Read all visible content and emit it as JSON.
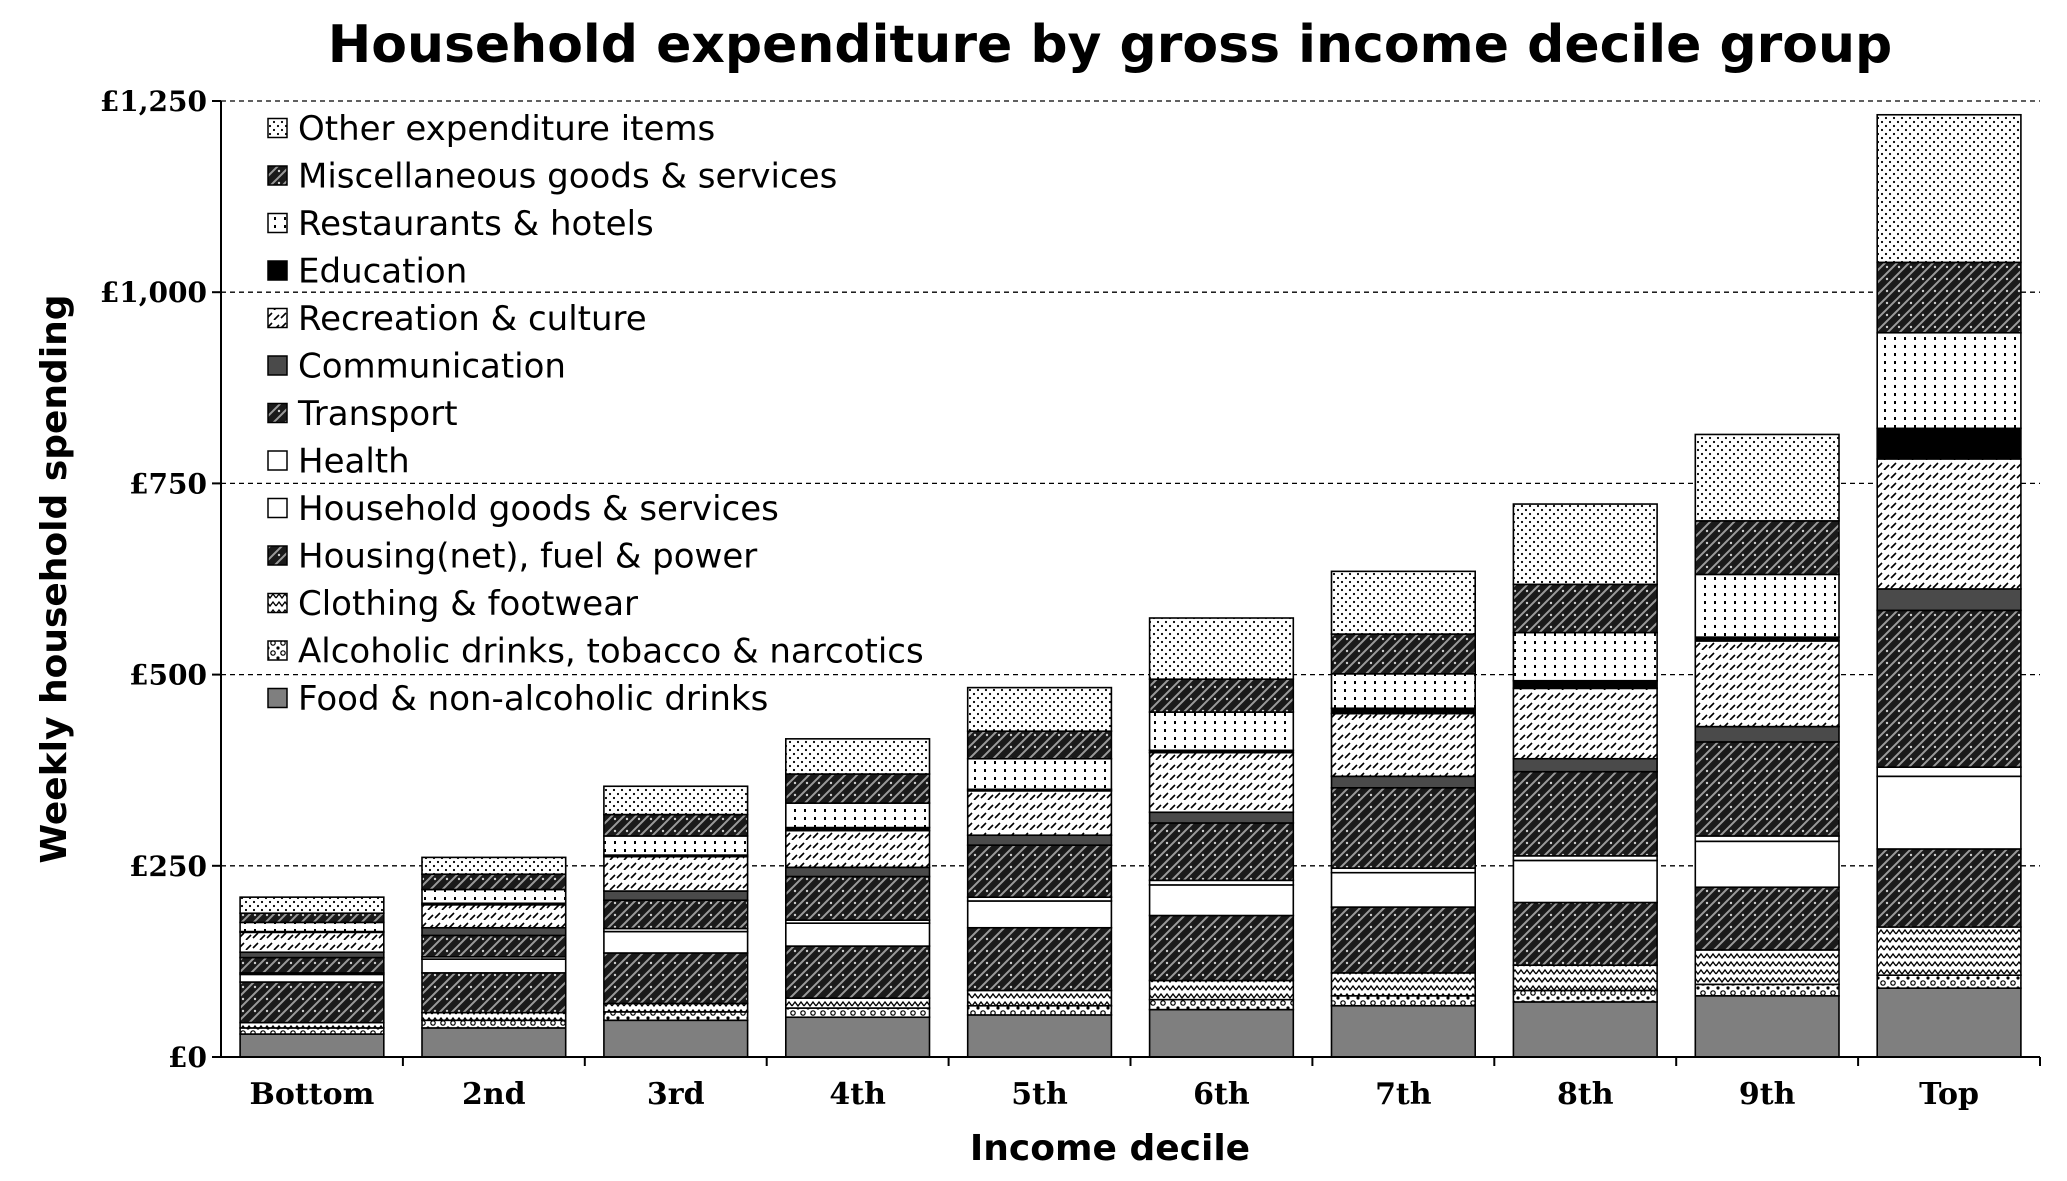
{
  "chart_data": {
    "type": "bar",
    "stacked": true,
    "title": "Household expenditure by gross income decile group",
    "xlabel": "Income decile",
    "ylabel": "Weekly household spending",
    "ylim": [
      0,
      1250
    ],
    "yticks": [
      0,
      250,
      500,
      750,
      1000,
      1250
    ],
    "ytick_labels": [
      "£0",
      "£250",
      "£500",
      "£750",
      "£1,000",
      "£1,250"
    ],
    "grid": "horizontal dashed",
    "legend_position": "top-left",
    "categories": [
      "Bottom",
      "2nd",
      "3rd",
      "4th",
      "5th",
      "6th",
      "7th",
      "8th",
      "9th",
      "Top"
    ],
    "series": [
      {
        "name": "Food & non-alcoholic drinks",
        "pattern": "solid-gray",
        "values": [
          30,
          38,
          48,
          52,
          55,
          62,
          67,
          72,
          80,
          90
        ]
      },
      {
        "name": "Alcoholic drinks, tobacco & narcotics",
        "pattern": "bubbles",
        "values": [
          8,
          10,
          11,
          12,
          12,
          13,
          13,
          15,
          15,
          17
        ]
      },
      {
        "name": "Clothing & footwear",
        "pattern": "zigzag",
        "values": [
          7,
          10,
          11,
          13,
          20,
          25,
          30,
          33,
          45,
          63
        ]
      },
      {
        "name": "Housing(net), fuel & power",
        "pattern": "dark-weave",
        "values": [
          53,
          52,
          66,
          68,
          82,
          85,
          86,
          82,
          82,
          102
        ]
      },
      {
        "name": "Household goods & services",
        "pattern": "white",
        "values": [
          10,
          18,
          28,
          30,
          35,
          40,
          45,
          55,
          60,
          95
        ]
      },
      {
        "name": "Health",
        "pattern": "white",
        "values": [
          2,
          3,
          4,
          4,
          5,
          6,
          6,
          6,
          7,
          12
        ]
      },
      {
        "name": "Transport",
        "pattern": "dark-weave",
        "values": [
          20,
          28,
          37,
          57,
          68,
          75,
          105,
          110,
          123,
          205
        ]
      },
      {
        "name": "Communication",
        "pattern": "solid-dark-gray",
        "values": [
          7,
          10,
          12,
          12,
          13,
          14,
          15,
          17,
          20,
          28
        ]
      },
      {
        "name": "Recreation & culture",
        "pattern": "diagonal-dashes",
        "values": [
          26,
          30,
          45,
          48,
          58,
          78,
          82,
          92,
          112,
          170
        ]
      },
      {
        "name": "Education",
        "pattern": "solid-black",
        "values": [
          1,
          2,
          2,
          4,
          2,
          3,
          7,
          10,
          5,
          40
        ]
      },
      {
        "name": "Restaurants & hotels",
        "pattern": "vertical-dots",
        "values": [
          12,
          18,
          25,
          32,
          40,
          50,
          45,
          63,
          82,
          125
        ]
      },
      {
        "name": "Miscellaneous goods & services",
        "pattern": "dark-weave",
        "values": [
          12,
          20,
          28,
          38,
          36,
          43,
          52,
          63,
          70,
          92
        ]
      },
      {
        "name": "Other expenditure items",
        "pattern": "fine-dots",
        "values": [
          21,
          22,
          37,
          46,
          57,
          80,
          82,
          105,
          113,
          193
        ]
      }
    ],
    "legend_order": [
      "Other expenditure items",
      "Miscellaneous goods & services",
      "Restaurants & hotels",
      "Education",
      "Recreation & culture",
      "Communication",
      "Transport",
      "Health",
      "Household goods & services",
      "Housing(net), fuel & power",
      "Clothing & footwear",
      "Alcoholic drinks, tobacco & narcotics",
      "Food & non-alcoholic drinks"
    ]
  }
}
